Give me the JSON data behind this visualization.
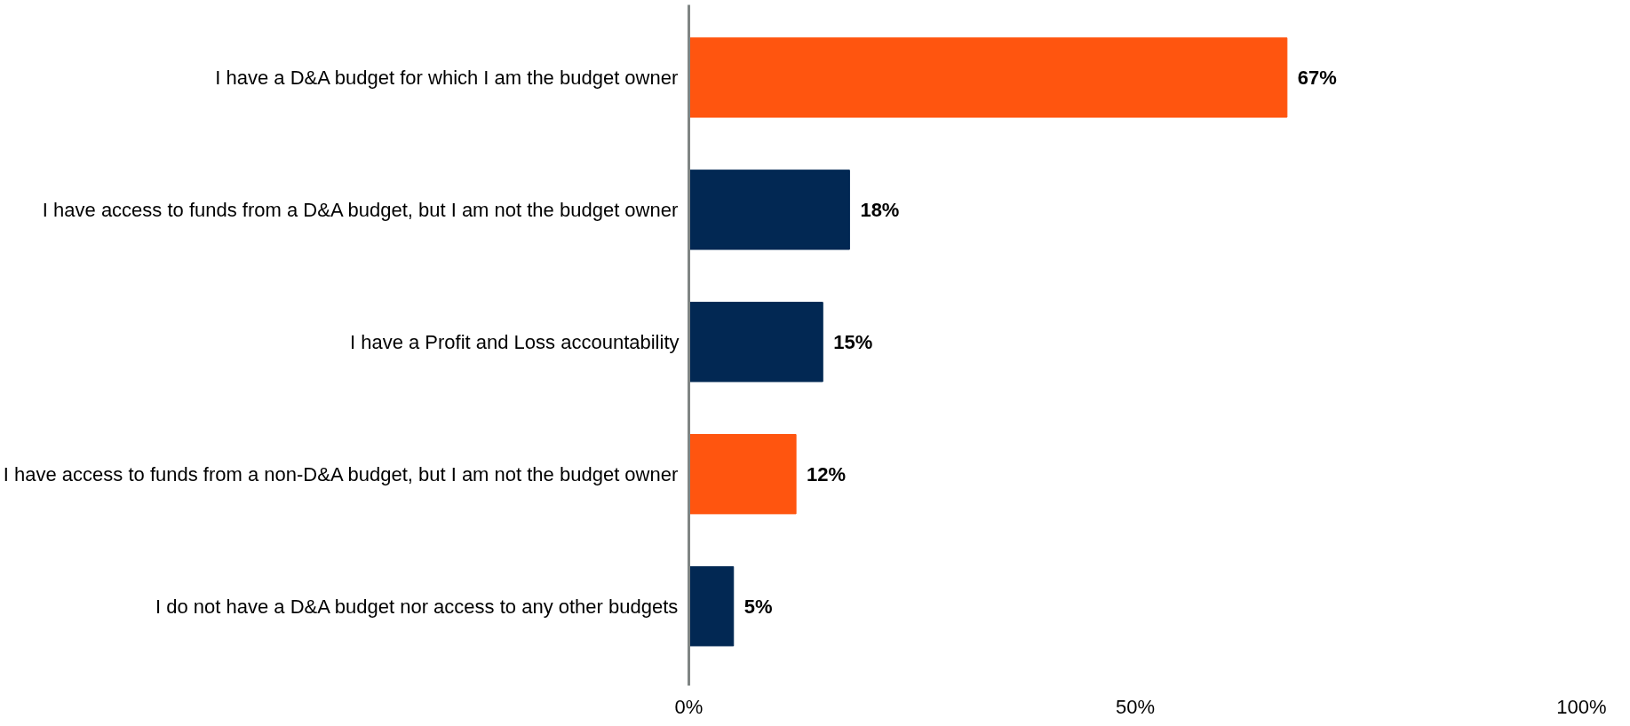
{
  "chart_data": {
    "type": "bar",
    "orientation": "horizontal",
    "categories": [
      "I have a D&A budget for which I am the budget owner",
      "I have access to funds from a D&A budget, but I am not the budget owner",
      "I have a Profit and Loss accountability",
      "I have access to funds from a non-D&A budget, but I am not the budget owner",
      "I do not have a D&A budget nor access to any other budgets"
    ],
    "values": [
      67,
      18,
      15,
      12,
      5
    ],
    "colors": [
      "#ff550f",
      "#022853",
      "#022853",
      "#ff550f",
      "#022853"
    ],
    "value_labels": [
      "67%",
      "18%",
      "15%",
      "12%",
      "5%"
    ],
    "xlim": [
      0,
      100
    ],
    "xticks": [
      {
        "value": 0,
        "label": "0%"
      },
      {
        "value": 50,
        "label": "50%"
      },
      {
        "value": 100,
        "label": "100%"
      }
    ],
    "grid": false
  }
}
